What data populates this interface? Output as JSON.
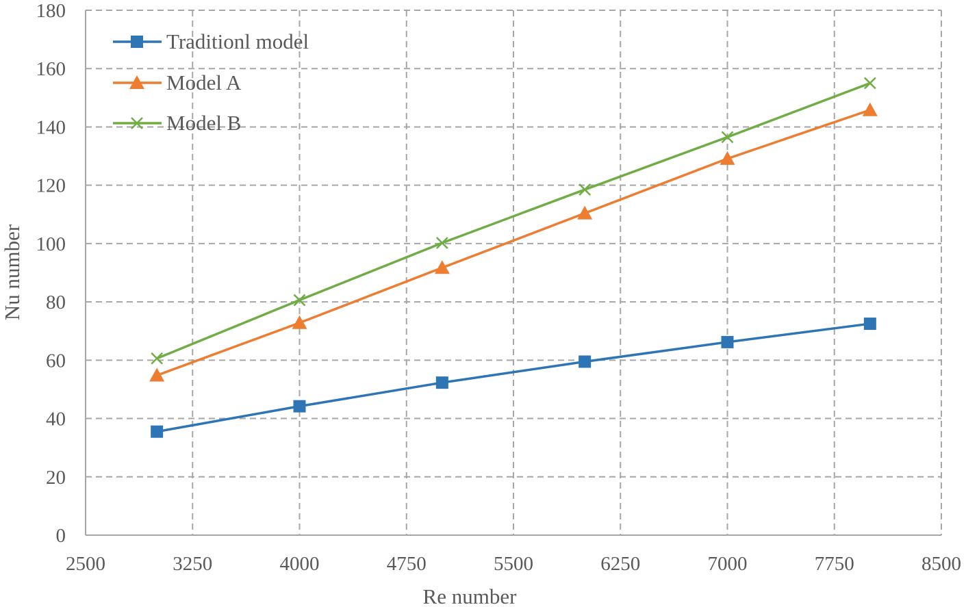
{
  "chart_data": {
    "type": "line",
    "title": "",
    "xlabel": "Re number",
    "ylabel": "Nu number",
    "xlim": [
      2500,
      8500
    ],
    "ylim": [
      0,
      180
    ],
    "xticks": [
      2500,
      3250,
      4000,
      4750,
      5500,
      6250,
      7000,
      7750,
      8500
    ],
    "yticks": [
      0,
      20,
      40,
      60,
      80,
      100,
      120,
      140,
      160,
      180
    ],
    "grid": true,
    "legend_position": "top-left",
    "series": [
      {
        "name": "Traditionl model",
        "color": "#2e75b6",
        "marker": "square",
        "x": [
          3000,
          4000,
          5000,
          6000,
          7000,
          8000
        ],
        "y": [
          35.5,
          44.2,
          52.3,
          59.5,
          66.2,
          72.5
        ]
      },
      {
        "name": "Model A",
        "color": "#ed7d31",
        "marker": "triangle",
        "x": [
          3000,
          4000,
          5000,
          6000,
          7000,
          8000
        ],
        "y": [
          54.8,
          72.8,
          91.7,
          110.4,
          129.1,
          145.8
        ]
      },
      {
        "name": "Model B",
        "color": "#70ad47",
        "marker": "x",
        "x": [
          3000,
          4000,
          5000,
          6000,
          7000,
          8000
        ],
        "y": [
          60.6,
          80.6,
          100.2,
          118.5,
          136.5,
          155.0
        ]
      }
    ]
  }
}
